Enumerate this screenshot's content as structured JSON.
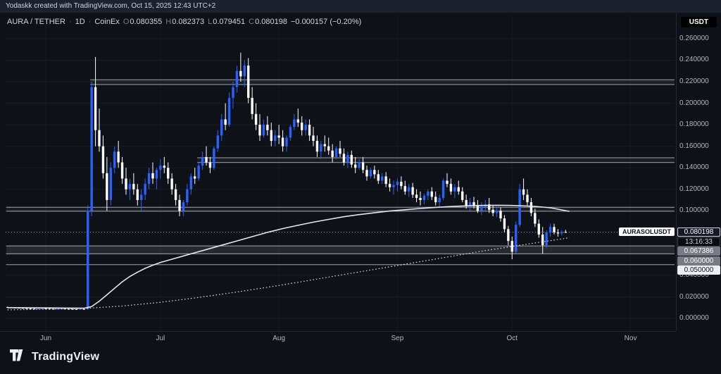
{
  "attribution": "Yodaskk created with TradingView.com, Oct 15, 2025 12:43 UTC+2",
  "badge": "USDT",
  "logo_text": "TradingView",
  "legend": {
    "symbol": "AURA / TETHER",
    "sep1": "·",
    "interval": "1D",
    "sep2": "·",
    "exchange": "CoinEx",
    "o_label": "O",
    "o": "0.080355",
    "h_label": "H",
    "h": "0.082373",
    "l_label": "L",
    "l": "0.079451",
    "c_label": "C",
    "c": "0.080198",
    "change": "−0.000157 (−0.20%)"
  },
  "chart_data": {
    "type": "candlestick",
    "title": "AURA / TETHER · 1D · CoinEx",
    "up_color": "#2962ff",
    "down_color": "#ffffff",
    "ylim": [
      -0.0065,
      0.2665
    ],
    "y_ticks": [
      0.0,
      0.02,
      0.04,
      0.06,
      0.08,
      0.1,
      0.12,
      0.14,
      0.16,
      0.18,
      0.2,
      0.22,
      0.24,
      0.26
    ],
    "hidden_ticks": [
      0.06,
      0.08
    ],
    "months": [
      {
        "label": "Jun",
        "i": 10
      },
      {
        "label": "Jul",
        "i": 40
      },
      {
        "label": "Aug",
        "i": 71
      },
      {
        "label": "Sep",
        "i": 102
      },
      {
        "label": "Oct",
        "i": 132
      },
      {
        "label": "Nov",
        "i": 163
      }
    ],
    "slots": 175,
    "last_price": 0.080198,
    "last_price_label": "0.080198",
    "countdown": "13:16:33",
    "price_line_label": "AURASOLUSDT",
    "levels": [
      {
        "p": 0.2218,
        "from": 22
      },
      {
        "p": 0.2174,
        "from": 22
      },
      {
        "p": 0.1493,
        "from": 50
      },
      {
        "p": 0.1449,
        "from": 50
      },
      {
        "p": 0.1033,
        "from": 0
      },
      {
        "p": 0.0996,
        "from": 0
      },
      {
        "p": 0.067386,
        "from": 0,
        "label": "0.067386",
        "bg": "#787b86",
        "fg": "#ffffff"
      },
      {
        "p": 0.06,
        "from": 0,
        "label": "0.060000",
        "bg": "#787b86",
        "fg": "#ffffff"
      },
      {
        "p": 0.05,
        "from": 0,
        "label": "0.050000",
        "bg": "#eceff4",
        "fg": "#131722"
      }
    ],
    "zones": [
      {
        "p1": 0.2174,
        "p2": 0.2218,
        "from": 22,
        "alpha": 0.05
      },
      {
        "p1": 0.1449,
        "p2": 0.1493,
        "from": 50,
        "alpha": 0.05
      },
      {
        "p1": 0.0996,
        "p2": 0.1033,
        "from": 0,
        "alpha": 0.05
      },
      {
        "p1": 0.06,
        "p2": 0.067386,
        "from": 0,
        "alpha": 0.1
      }
    ],
    "ma_solid": [
      [
        0,
        0.01
      ],
      [
        8,
        0.0098
      ],
      [
        16,
        0.0096
      ],
      [
        20,
        0.0095
      ],
      [
        22,
        0.011
      ],
      [
        24,
        0.016
      ],
      [
        26,
        0.022
      ],
      [
        28,
        0.028
      ],
      [
        30,
        0.034
      ],
      [
        32,
        0.039
      ],
      [
        34,
        0.043
      ],
      [
        36,
        0.0465
      ],
      [
        38,
        0.0495
      ],
      [
        40,
        0.052
      ],
      [
        44,
        0.056
      ],
      [
        48,
        0.06
      ],
      [
        52,
        0.064
      ],
      [
        56,
        0.068
      ],
      [
        60,
        0.072
      ],
      [
        64,
        0.076
      ],
      [
        68,
        0.08
      ],
      [
        72,
        0.0835
      ],
      [
        76,
        0.0865
      ],
      [
        80,
        0.0895
      ],
      [
        84,
        0.092
      ],
      [
        88,
        0.0945
      ],
      [
        92,
        0.0965
      ],
      [
        96,
        0.0982
      ],
      [
        100,
        0.0998
      ],
      [
        104,
        0.101
      ],
      [
        108,
        0.1022
      ],
      [
        112,
        0.1032
      ],
      [
        116,
        0.104
      ],
      [
        120,
        0.1046
      ],
      [
        124,
        0.105
      ],
      [
        128,
        0.1052
      ],
      [
        132,
        0.105
      ],
      [
        136,
        0.1045
      ],
      [
        139,
        0.1038
      ],
      [
        142,
        0.1028
      ],
      [
        144,
        0.1015
      ],
      [
        147,
        0.0995
      ]
    ],
    "ma_dotted": [
      [
        0,
        0.008
      ],
      [
        10,
        0.0085
      ],
      [
        20,
        0.0092
      ],
      [
        30,
        0.0115
      ],
      [
        40,
        0.015
      ],
      [
        50,
        0.0195
      ],
      [
        60,
        0.0245
      ],
      [
        70,
        0.03
      ],
      [
        80,
        0.036
      ],
      [
        90,
        0.042
      ],
      [
        100,
        0.048
      ],
      [
        110,
        0.054
      ],
      [
        115,
        0.057
      ],
      [
        120,
        0.06
      ],
      [
        125,
        0.063
      ],
      [
        130,
        0.0658
      ],
      [
        135,
        0.0685
      ],
      [
        140,
        0.0712
      ],
      [
        143,
        0.0728
      ],
      [
        147,
        0.075
      ]
    ],
    "candles": [
      [
        0.0105,
        0.011,
        0.01,
        0.0102
      ],
      [
        0.0102,
        0.0106,
        0.0098,
        0.01
      ],
      [
        0.01,
        0.0104,
        0.0096,
        0.0098
      ],
      [
        0.0098,
        0.0102,
        0.0094,
        0.0096
      ],
      [
        0.0096,
        0.01,
        0.0092,
        0.0094
      ],
      [
        0.0094,
        0.0098,
        0.009,
        0.0092
      ],
      [
        0.0092,
        0.0096,
        0.0088,
        0.009
      ],
      [
        0.009,
        0.0094,
        0.0086,
        0.0088
      ],
      [
        0.0088,
        0.0092,
        0.0085,
        0.009
      ],
      [
        0.009,
        0.0094,
        0.0087,
        0.0092
      ],
      [
        0.0092,
        0.0095,
        0.0088,
        0.009
      ],
      [
        0.009,
        0.0093,
        0.0086,
        0.0088
      ],
      [
        0.0088,
        0.0091,
        0.0084,
        0.0086
      ],
      [
        0.0086,
        0.009,
        0.0083,
        0.0088
      ],
      [
        0.0088,
        0.0092,
        0.0085,
        0.009
      ],
      [
        0.009,
        0.0093,
        0.0086,
        0.0088
      ],
      [
        0.0088,
        0.0091,
        0.0085,
        0.0087
      ],
      [
        0.0087,
        0.009,
        0.0084,
        0.0086
      ],
      [
        0.0086,
        0.0089,
        0.0083,
        0.0085
      ],
      [
        0.0085,
        0.0089,
        0.0082,
        0.0087
      ],
      [
        0.0087,
        0.009,
        0.0083,
        0.0085
      ],
      [
        0.0085,
        0.105,
        0.0083,
        0.1
      ],
      [
        0.1,
        0.22,
        0.095,
        0.215
      ],
      [
        0.215,
        0.243,
        0.16,
        0.175
      ],
      [
        0.175,
        0.195,
        0.155,
        0.16
      ],
      [
        0.16,
        0.17,
        0.13,
        0.135
      ],
      [
        0.135,
        0.15,
        0.1,
        0.11
      ],
      [
        0.11,
        0.145,
        0.105,
        0.14
      ],
      [
        0.14,
        0.16,
        0.135,
        0.155
      ],
      [
        0.155,
        0.165,
        0.14,
        0.145
      ],
      [
        0.145,
        0.15,
        0.125,
        0.13
      ],
      [
        0.13,
        0.14,
        0.115,
        0.12
      ],
      [
        0.12,
        0.13,
        0.11,
        0.125
      ],
      [
        0.125,
        0.135,
        0.115,
        0.12
      ],
      [
        0.12,
        0.125,
        0.105,
        0.11
      ],
      [
        0.11,
        0.12,
        0.1,
        0.115
      ],
      [
        0.115,
        0.13,
        0.11,
        0.125
      ],
      [
        0.125,
        0.14,
        0.12,
        0.135
      ],
      [
        0.135,
        0.145,
        0.125,
        0.13
      ],
      [
        0.13,
        0.14,
        0.12,
        0.138
      ],
      [
        0.138,
        0.148,
        0.13,
        0.142
      ],
      [
        0.142,
        0.15,
        0.135,
        0.14
      ],
      [
        0.14,
        0.145,
        0.125,
        0.13
      ],
      [
        0.13,
        0.135,
        0.115,
        0.12
      ],
      [
        0.12,
        0.125,
        0.105,
        0.11
      ],
      [
        0.11,
        0.115,
        0.095,
        0.1
      ],
      [
        0.1,
        0.11,
        0.095,
        0.108
      ],
      [
        0.108,
        0.125,
        0.105,
        0.12
      ],
      [
        0.12,
        0.135,
        0.115,
        0.132
      ],
      [
        0.132,
        0.14,
        0.125,
        0.13
      ],
      [
        0.13,
        0.145,
        0.128,
        0.142
      ],
      [
        0.142,
        0.155,
        0.138,
        0.15
      ],
      [
        0.15,
        0.16,
        0.142,
        0.145
      ],
      [
        0.145,
        0.15,
        0.135,
        0.14
      ],
      [
        0.14,
        0.16,
        0.138,
        0.158
      ],
      [
        0.158,
        0.175,
        0.155,
        0.17
      ],
      [
        0.17,
        0.19,
        0.165,
        0.185
      ],
      [
        0.185,
        0.2,
        0.175,
        0.18
      ],
      [
        0.18,
        0.21,
        0.178,
        0.205
      ],
      [
        0.205,
        0.22,
        0.195,
        0.215
      ],
      [
        0.215,
        0.235,
        0.21,
        0.23
      ],
      [
        0.23,
        0.247,
        0.22,
        0.225
      ],
      [
        0.225,
        0.24,
        0.215,
        0.235
      ],
      [
        0.235,
        0.242,
        0.2,
        0.205
      ],
      [
        0.205,
        0.215,
        0.185,
        0.19
      ],
      [
        0.19,
        0.2,
        0.175,
        0.18
      ],
      [
        0.18,
        0.19,
        0.165,
        0.17
      ],
      [
        0.17,
        0.185,
        0.168,
        0.18
      ],
      [
        0.18,
        0.188,
        0.17,
        0.175
      ],
      [
        0.175,
        0.182,
        0.16,
        0.165
      ],
      [
        0.165,
        0.175,
        0.16,
        0.17
      ],
      [
        0.17,
        0.18,
        0.162,
        0.168
      ],
      [
        0.168,
        0.175,
        0.155,
        0.16
      ],
      [
        0.16,
        0.17,
        0.155,
        0.168
      ],
      [
        0.168,
        0.18,
        0.165,
        0.178
      ],
      [
        0.178,
        0.19,
        0.175,
        0.185
      ],
      [
        0.185,
        0.195,
        0.178,
        0.182
      ],
      [
        0.182,
        0.188,
        0.17,
        0.175
      ],
      [
        0.175,
        0.185,
        0.17,
        0.18
      ],
      [
        0.18,
        0.185,
        0.165,
        0.17
      ],
      [
        0.17,
        0.178,
        0.16,
        0.165
      ],
      [
        0.165,
        0.17,
        0.15,
        0.155
      ],
      [
        0.155,
        0.165,
        0.148,
        0.162
      ],
      [
        0.162,
        0.17,
        0.155,
        0.16
      ],
      [
        0.16,
        0.168,
        0.152,
        0.156
      ],
      [
        0.156,
        0.162,
        0.145,
        0.15
      ],
      [
        0.15,
        0.16,
        0.148,
        0.158
      ],
      [
        0.158,
        0.165,
        0.15,
        0.153
      ],
      [
        0.153,
        0.158,
        0.142,
        0.145
      ],
      [
        0.145,
        0.155,
        0.14,
        0.152
      ],
      [
        0.152,
        0.156,
        0.14,
        0.143
      ],
      [
        0.143,
        0.15,
        0.135,
        0.14
      ],
      [
        0.14,
        0.148,
        0.138,
        0.145
      ],
      [
        0.145,
        0.15,
        0.135,
        0.138
      ],
      [
        0.138,
        0.142,
        0.128,
        0.132
      ],
      [
        0.132,
        0.14,
        0.13,
        0.138
      ],
      [
        0.138,
        0.142,
        0.13,
        0.134
      ],
      [
        0.134,
        0.138,
        0.125,
        0.128
      ],
      [
        0.128,
        0.135,
        0.125,
        0.132
      ],
      [
        0.132,
        0.136,
        0.122,
        0.125
      ],
      [
        0.125,
        0.13,
        0.118,
        0.122
      ],
      [
        0.122,
        0.128,
        0.115,
        0.124
      ],
      [
        0.124,
        0.13,
        0.118,
        0.127
      ],
      [
        0.127,
        0.132,
        0.12,
        0.123
      ],
      [
        0.123,
        0.128,
        0.115,
        0.118
      ],
      [
        0.118,
        0.125,
        0.113,
        0.122
      ],
      [
        0.122,
        0.126,
        0.112,
        0.115
      ],
      [
        0.115,
        0.12,
        0.108,
        0.112
      ],
      [
        0.112,
        0.118,
        0.105,
        0.11
      ],
      [
        0.11,
        0.116,
        0.106,
        0.114
      ],
      [
        0.114,
        0.12,
        0.11,
        0.118
      ],
      [
        0.118,
        0.122,
        0.11,
        0.113
      ],
      [
        0.113,
        0.118,
        0.105,
        0.108
      ],
      [
        0.108,
        0.115,
        0.104,
        0.112
      ],
      [
        0.112,
        0.13,
        0.11,
        0.128
      ],
      [
        0.128,
        0.135,
        0.122,
        0.125
      ],
      [
        0.125,
        0.13,
        0.115,
        0.118
      ],
      [
        0.118,
        0.125,
        0.112,
        0.122
      ],
      [
        0.122,
        0.128,
        0.115,
        0.118
      ],
      [
        0.118,
        0.122,
        0.108,
        0.11
      ],
      [
        0.11,
        0.115,
        0.102,
        0.105
      ],
      [
        0.105,
        0.112,
        0.1,
        0.108
      ],
      [
        0.108,
        0.113,
        0.102,
        0.105
      ],
      [
        0.105,
        0.11,
        0.098,
        0.1
      ],
      [
        0.1,
        0.108,
        0.096,
        0.104
      ],
      [
        0.104,
        0.11,
        0.1,
        0.106
      ],
      [
        0.106,
        0.112,
        0.098,
        0.101
      ],
      [
        0.101,
        0.105,
        0.095,
        0.098
      ],
      [
        0.098,
        0.104,
        0.094,
        0.1
      ],
      [
        0.1,
        0.103,
        0.09,
        0.093
      ],
      [
        0.093,
        0.096,
        0.08,
        0.083
      ],
      [
        0.083,
        0.086,
        0.068,
        0.072
      ],
      [
        0.072,
        0.076,
        0.055,
        0.062
      ],
      [
        0.062,
        0.09,
        0.06,
        0.087
      ],
      [
        0.087,
        0.125,
        0.085,
        0.12
      ],
      [
        0.12,
        0.13,
        0.11,
        0.115
      ],
      [
        0.115,
        0.12,
        0.105,
        0.108
      ],
      [
        0.108,
        0.112,
        0.095,
        0.098
      ],
      [
        0.098,
        0.102,
        0.085,
        0.088
      ],
      [
        0.088,
        0.092,
        0.075,
        0.078
      ],
      [
        0.078,
        0.085,
        0.06,
        0.068
      ],
      [
        0.068,
        0.082,
        0.065,
        0.08
      ],
      [
        0.08,
        0.088,
        0.076,
        0.085
      ],
      [
        0.085,
        0.088,
        0.078,
        0.08
      ],
      [
        0.08,
        0.083,
        0.076,
        0.079
      ],
      [
        0.079,
        0.082,
        0.077,
        0.0804
      ],
      [
        0.080355,
        0.082373,
        0.079451,
        0.080198
      ]
    ]
  }
}
